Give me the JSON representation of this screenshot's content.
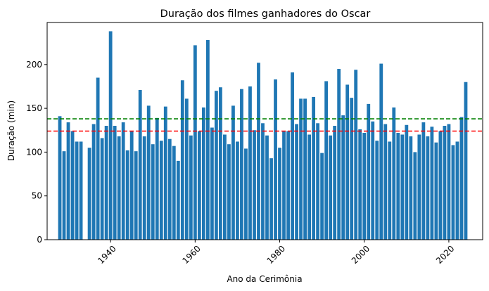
{
  "chart_data": {
    "type": "bar",
    "title": "Duração dos filmes ganhadores do Oscar",
    "xlabel": "Ano da Cerimônia",
    "ylabel": "Duração (min)",
    "xlim": [
      1925,
      2028
    ],
    "ylim": [
      0,
      248
    ],
    "x_ticks": [
      1940,
      1960,
      1980,
      2000,
      2020
    ],
    "y_ticks": [
      0,
      50,
      100,
      150,
      200
    ],
    "bar_color": "#1f77b4",
    "reference_lines": [
      {
        "value": 138,
        "color": "#008000",
        "style": "dashed"
      },
      {
        "value": 124,
        "color": "#ff0000",
        "style": "dashed"
      }
    ],
    "x": [
      1928,
      1929,
      1930,
      1931,
      1932,
      1933,
      1935,
      1936,
      1937,
      1938,
      1939,
      1940,
      1941,
      1942,
      1943,
      1944,
      1945,
      1946,
      1947,
      1948,
      1949,
      1950,
      1951,
      1952,
      1953,
      1954,
      1955,
      1956,
      1957,
      1958,
      1959,
      1960,
      1961,
      1962,
      1963,
      1964,
      1965,
      1966,
      1967,
      1968,
      1969,
      1970,
      1971,
      1972,
      1973,
      1974,
      1975,
      1976,
      1977,
      1978,
      1979,
      1980,
      1981,
      1982,
      1983,
      1984,
      1985,
      1986,
      1987,
      1988,
      1989,
      1990,
      1991,
      1992,
      1993,
      1994,
      1995,
      1996,
      1997,
      1998,
      1999,
      2000,
      2001,
      2002,
      2003,
      2004,
      2005,
      2006,
      2007,
      2008,
      2009,
      2010,
      2011,
      2012,
      2013,
      2014,
      2015,
      2016,
      2017,
      2018,
      2019,
      2020,
      2021,
      2022,
      2023,
      2024
    ],
    "values": [
      141,
      101,
      134,
      124,
      112,
      112,
      105,
      132,
      185,
      116,
      130,
      238,
      130,
      118,
      134,
      102,
      124,
      101,
      171,
      118,
      153,
      109,
      139,
      113,
      152,
      115,
      107,
      90,
      182,
      161,
      119,
      222,
      124,
      151,
      228,
      128,
      170,
      174,
      120,
      109,
      153,
      112,
      172,
      104,
      175,
      125,
      202,
      133,
      119,
      93,
      183,
      105,
      124,
      124,
      191,
      132,
      161,
      161,
      120,
      163,
      133,
      99,
      181,
      119,
      130,
      195,
      142,
      177,
      162,
      194,
      126,
      122,
      155,
      135,
      113,
      201,
      132,
      112,
      151,
      122,
      120,
      131,
      118,
      100,
      120,
      134,
      118,
      129,
      111,
      124,
      130,
      132,
      108,
      112,
      140,
      180
    ]
  }
}
